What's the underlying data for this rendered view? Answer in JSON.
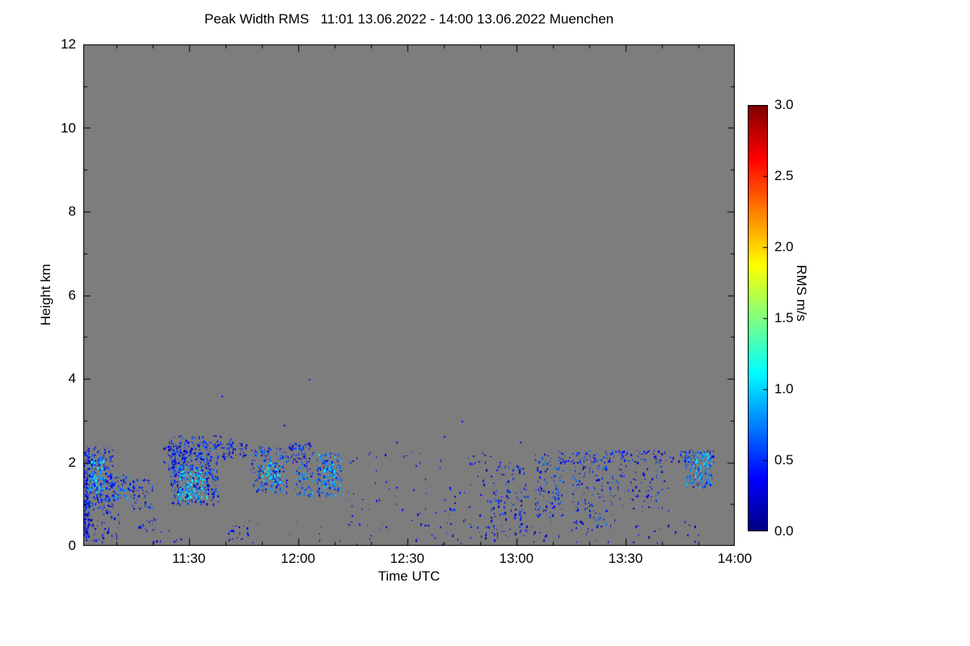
{
  "title": "Peak Width RMS   11:01 13.06.2022 - 14:00 13.06.2022 Muenchen",
  "chart_data": {
    "type": "heatmap",
    "title": "Peak Width RMS",
    "time_range": "11:01 13.06.2022 - 14:00 13.06.2022",
    "station": "Muenchen",
    "xlabel": "Time UTC",
    "ylabel": "Height km",
    "ylim": [
      0,
      12
    ],
    "x_range_minutes": [
      0,
      179
    ],
    "x_ticks": [
      {
        "label": "11:30",
        "minute": 29
      },
      {
        "label": "12:00",
        "minute": 59
      },
      {
        "label": "12:30",
        "minute": 89
      },
      {
        "label": "13:00",
        "minute": 119
      },
      {
        "label": "13:30",
        "minute": 149
      },
      {
        "label": "14:00",
        "minute": 179
      }
    ],
    "x_minor_ticks_minutes": [
      9,
      19,
      39,
      49,
      69,
      79,
      99,
      109,
      129,
      139,
      159,
      169
    ],
    "y_ticks": [
      0,
      2,
      4,
      6,
      8,
      10,
      12
    ],
    "y_minor_ticks": [
      1,
      3,
      5,
      7,
      9,
      11
    ],
    "background_color": "#7d7d7d",
    "frame_color": "#000000",
    "colormap": "jet",
    "colorbar": {
      "label": "RMS m/s",
      "min": 0.0,
      "max": 3.0,
      "ticks": [
        "0.0",
        "0.5",
        "1.0",
        "1.5",
        "2.0",
        "2.5",
        "3.0"
      ]
    },
    "seed": 1337,
    "clusters_note": "each cluster = [t0_min, t1_min, h0_km, h1_km, n_points, rms_min, rms_max]",
    "clusters": [
      [
        0,
        1.5,
        0.2,
        2.3,
        130,
        0.15,
        0.6
      ],
      [
        0,
        8,
        0.9,
        2.4,
        260,
        0.15,
        0.7
      ],
      [
        1,
        6,
        1.3,
        2.1,
        90,
        0.7,
        1.2
      ],
      [
        0,
        10,
        0.1,
        0.9,
        60,
        0.15,
        0.5
      ],
      [
        8,
        14,
        1.1,
        1.7,
        70,
        0.2,
        0.9
      ],
      [
        13,
        19,
        0.9,
        1.6,
        50,
        0.15,
        0.7
      ],
      [
        15,
        20,
        0.3,
        0.8,
        18,
        0.15,
        0.5
      ],
      [
        22,
        28,
        1.8,
        2.4,
        60,
        0.15,
        0.7
      ],
      [
        24,
        37,
        1.0,
        2.5,
        420,
        0.15,
        0.8
      ],
      [
        26,
        34,
        1.1,
        1.9,
        160,
        0.7,
        1.3
      ],
      [
        23,
        41,
        2.3,
        2.65,
        70,
        0.15,
        0.6
      ],
      [
        38,
        45,
        2.1,
        2.5,
        45,
        0.15,
        0.6
      ],
      [
        40,
        45,
        0.1,
        0.5,
        15,
        0.15,
        0.5
      ],
      [
        46,
        56,
        1.3,
        2.4,
        190,
        0.2,
        0.9
      ],
      [
        49,
        54,
        1.5,
        2.05,
        60,
        0.7,
        1.25
      ],
      [
        56,
        63,
        2.0,
        2.5,
        70,
        0.15,
        0.7
      ],
      [
        58,
        63,
        1.2,
        2.0,
        70,
        0.25,
        1.0
      ],
      [
        64,
        71,
        1.2,
        2.25,
        160,
        0.25,
        1.05
      ],
      [
        66,
        69,
        1.4,
        2.0,
        40,
        0.7,
        1.2
      ],
      [
        72,
        112,
        0.2,
        2.3,
        100,
        0.15,
        0.55
      ],
      [
        112,
        122,
        0.2,
        2.05,
        130,
        0.15,
        0.65
      ],
      [
        124,
        132,
        0.7,
        2.2,
        110,
        0.15,
        0.75
      ],
      [
        134,
        146,
        0.4,
        2.25,
        140,
        0.15,
        0.75
      ],
      [
        130,
        173,
        2.0,
        2.3,
        130,
        0.15,
        0.65
      ],
      [
        146,
        161,
        0.8,
        2.0,
        70,
        0.15,
        0.6
      ],
      [
        165,
        173,
        1.4,
        2.3,
        150,
        0.25,
        1.0
      ],
      [
        168,
        172,
        1.6,
        2.25,
        50,
        0.7,
        1.25
      ],
      [
        10,
        170,
        0.05,
        0.6,
        90,
        0.15,
        0.45
      ]
    ],
    "isolated_points_note": "each point = [t_min, h_km, rms]",
    "isolated_points": [
      [
        62,
        4.0,
        0.5
      ],
      [
        38,
        3.6,
        0.45
      ],
      [
        104,
        3.0,
        0.45
      ],
      [
        99,
        2.62,
        0.4
      ],
      [
        86,
        2.5,
        0.35
      ],
      [
        55,
        2.9,
        0.3
      ],
      [
        120,
        2.5,
        0.35
      ]
    ]
  }
}
